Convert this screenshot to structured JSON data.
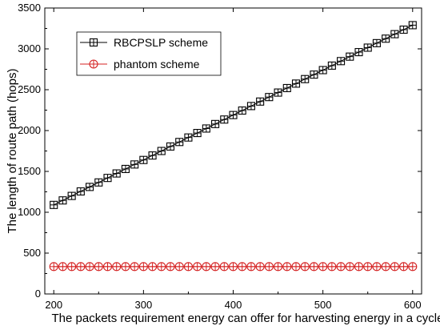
{
  "chart_data": {
    "type": "line",
    "title": "",
    "xlabel": "The packets requirement energy can offer for harvesting energy in a cycle",
    "ylabel": "The length of route  path (hops)",
    "xlim": [
      190,
      610
    ],
    "ylim": [
      0,
      3500
    ],
    "xticks": [
      200,
      300,
      400,
      500,
      600
    ],
    "yticks": [
      0,
      500,
      1000,
      1500,
      2000,
      2500,
      3000,
      3500
    ],
    "grid": false,
    "legend_position": "top-left",
    "series": [
      {
        "name": "RBCPSLP scheme",
        "color": "#000000",
        "marker": "boxed-plus",
        "x": [
          200,
          210,
          220,
          230,
          240,
          250,
          260,
          270,
          280,
          290,
          300,
          310,
          320,
          330,
          340,
          350,
          360,
          370,
          380,
          390,
          400,
          410,
          420,
          430,
          440,
          450,
          460,
          470,
          480,
          490,
          500,
          510,
          520,
          530,
          540,
          550,
          560,
          570,
          580,
          590,
          600
        ],
        "values": [
          1090,
          1145,
          1200,
          1255,
          1310,
          1365,
          1420,
          1475,
          1530,
          1585,
          1640,
          1695,
          1750,
          1805,
          1860,
          1915,
          1970,
          2025,
          2080,
          2135,
          2190,
          2245,
          2300,
          2355,
          2410,
          2465,
          2520,
          2575,
          2630,
          2685,
          2740,
          2795,
          2850,
          2905,
          2960,
          3015,
          3070,
          3125,
          3180,
          3235,
          3290
        ]
      },
      {
        "name": "phantom scheme",
        "color": "#d42020",
        "marker": "circle-plus",
        "x": [
          200,
          210,
          220,
          230,
          240,
          250,
          260,
          270,
          280,
          290,
          300,
          310,
          320,
          330,
          340,
          350,
          360,
          370,
          380,
          390,
          400,
          410,
          420,
          430,
          440,
          450,
          460,
          470,
          480,
          490,
          500,
          510,
          520,
          530,
          540,
          550,
          560,
          570,
          580,
          590,
          600
        ],
        "values": [
          335,
          335,
          335,
          335,
          335,
          335,
          335,
          335,
          335,
          335,
          335,
          335,
          335,
          335,
          335,
          335,
          335,
          335,
          335,
          335,
          335,
          335,
          335,
          335,
          335,
          335,
          335,
          335,
          335,
          335,
          335,
          335,
          335,
          335,
          335,
          335,
          335,
          335,
          335,
          335,
          335
        ]
      }
    ]
  }
}
